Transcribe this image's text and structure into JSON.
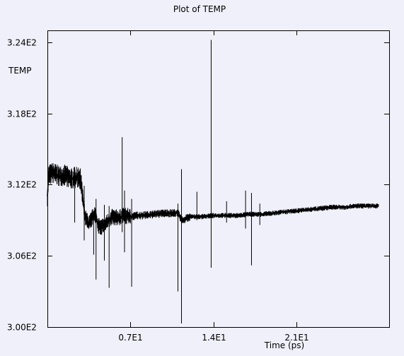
{
  "chart_data": {
    "type": "line",
    "title": "Plot of TEMP",
    "ylabel": "TEMP",
    "xlabel": "Time (ps)",
    "xlim": [
      0,
      28.8
    ],
    "ylim": [
      300,
      325
    ],
    "yticks": [
      300,
      306,
      312,
      318,
      324
    ],
    "ytick_labels": [
      "3.00E2",
      "3.06E2",
      "3.12E2",
      "3.18E2",
      "3.24E2"
    ],
    "xticks": [
      7,
      14,
      21
    ],
    "xtick_labels": [
      "0.7E1",
      "1.4E1",
      "2.1E1"
    ],
    "grid": false,
    "colors": {
      "line": "#000000",
      "background": "#f0f0fa"
    },
    "series": [
      {
        "x": [
          0.0,
          0.1,
          0.5,
          1.0,
          1.5,
          2.0,
          2.5,
          2.8,
          3.0,
          3.2,
          3.5,
          4.0,
          4.3,
          4.5,
          5.0,
          5.5,
          6.0,
          6.5,
          7.0,
          7.5,
          8.0,
          9.0,
          10.0,
          11.0,
          11.3,
          11.6,
          12.0,
          13.0,
          14.0,
          15.0,
          16.0,
          17.0,
          18.0,
          19.0,
          20.0,
          21.0,
          22.0,
          23.0,
          24.0,
          25.0,
          26.0,
          27.0,
          27.9
        ],
        "y": [
          311.0,
          312.8,
          313.0,
          312.7,
          312.8,
          312.5,
          312.6,
          312.5,
          310.6,
          309.2,
          308.7,
          309.6,
          308.5,
          308.4,
          308.8,
          309.3,
          309.2,
          309.4,
          309.3,
          309.4,
          309.4,
          309.5,
          309.6,
          309.6,
          309.0,
          309.1,
          309.3,
          309.3,
          309.4,
          309.4,
          309.4,
          309.5,
          309.5,
          309.6,
          309.7,
          309.8,
          309.9,
          310.0,
          310.1,
          310.1,
          310.2,
          310.2,
          310.2
        ]
      }
    ],
    "spikes": [
      {
        "x": 2.3,
        "ymin": 308.8,
        "ymax": 313.5
      },
      {
        "x": 3.1,
        "ymin": 307.3,
        "ymax": 311.9
      },
      {
        "x": 3.9,
        "ymin": 306.1,
        "ymax": 309.8
      },
      {
        "x": 4.1,
        "ymin": 304.0,
        "ymax": 310.8
      },
      {
        "x": 4.8,
        "ymin": 305.6,
        "ymax": 310.3
      },
      {
        "x": 5.2,
        "ymin": 303.3,
        "ymax": 310.2
      },
      {
        "x": 6.3,
        "ymin": 308.0,
        "ymax": 316.0
      },
      {
        "x": 6.5,
        "ymin": 306.3,
        "ymax": 311.5
      },
      {
        "x": 7.1,
        "ymin": 303.4,
        "ymax": 310.8
      },
      {
        "x": 11.0,
        "ymin": 303.0,
        "ymax": 310.4
      },
      {
        "x": 11.3,
        "ymin": 300.3,
        "ymax": 313.3
      },
      {
        "x": 12.6,
        "ymin": 309.0,
        "ymax": 311.4
      },
      {
        "x": 13.8,
        "ymin": 305.0,
        "ymax": 324.2
      },
      {
        "x": 15.1,
        "ymin": 308.8,
        "ymax": 310.6
      },
      {
        "x": 16.7,
        "ymin": 308.3,
        "ymax": 311.5
      },
      {
        "x": 17.2,
        "ymin": 305.2,
        "ymax": 311.3
      },
      {
        "x": 17.9,
        "ymin": 308.6,
        "ymax": 310.4
      }
    ]
  }
}
